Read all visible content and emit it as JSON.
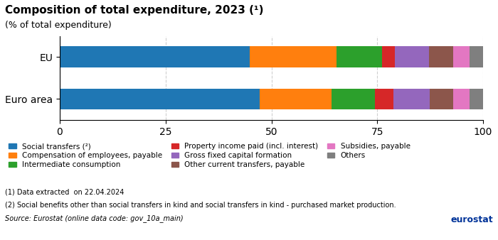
{
  "chart_data": {
    "type": "bar",
    "orientation": "horizontal",
    "stacked": true,
    "title": "Composition of total expenditure, 2023 (¹)",
    "subtitle": "(% of total expenditure)",
    "categories": [
      "EU",
      "Euro area"
    ],
    "series": [
      {
        "name": "Social transfers (²)",
        "values": [
          44.8,
          47.2
        ]
      },
      {
        "name": "Compensation of employees, payable",
        "values": [
          20.5,
          17.0
        ]
      },
      {
        "name": "Intermediate consumption",
        "values": [
          10.8,
          10.2
        ]
      },
      {
        "name": "Property income paid (incl. interest)",
        "values": [
          3.0,
          4.5
        ]
      },
      {
        "name": "Gross fixed capital formation",
        "values": [
          8.2,
          8.5
        ]
      },
      {
        "name": "Other current transfers, payable",
        "values": [
          5.7,
          5.6
        ]
      },
      {
        "name": "Subsidies, payable",
        "values": [
          3.8,
          3.8
        ]
      },
      {
        "name": "Others",
        "values": [
          3.2,
          3.2
        ]
      }
    ],
    "xlim": [
      0,
      100
    ],
    "xticks": [
      0,
      25,
      50,
      75,
      100
    ],
    "grid": true,
    "legend": "upper left",
    "annotations": [
      "(1) Data extracted  on 22.04.2024",
      "(2) Social benefits other than social transfers in kind and social transfers in kind - purchased market production.",
      "Source: Eurostat (online data code: gov_10a_main)",
      "eurostat"
    ]
  }
}
